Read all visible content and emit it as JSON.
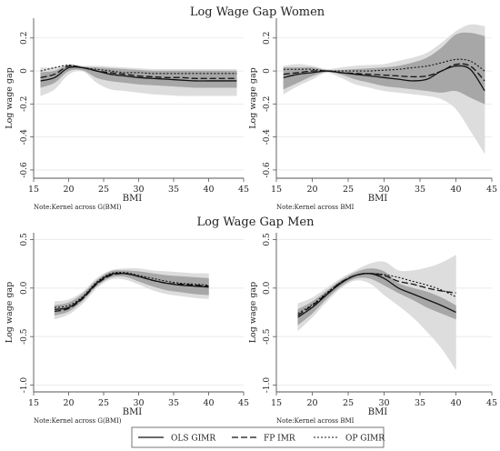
{
  "colors": {
    "band_outer": "#dddddd",
    "band_inner": "#a7a7a7",
    "grid": "#e6e6e6",
    "axis": "#555555",
    "line": "#111111",
    "background": "#ffffff"
  },
  "sections": {
    "women_title": "Log Wage Gap Women",
    "men_title": "Log Wage Gap Men"
  },
  "legend": {
    "items": [
      {
        "label": "OLS GIMR",
        "dash": "solid"
      },
      {
        "label": "FP IMR",
        "dash": "long-dash"
      },
      {
        "label": "OP GIMR",
        "dash": "short-dash"
      }
    ]
  },
  "chart_data": [
    {
      "type": "line",
      "title": "",
      "xlabel": "BMI",
      "ylabel": "Log wage gap",
      "note": "Note:Kernel across G(BMI)",
      "xlim": [
        15,
        45
      ],
      "ylim": [
        -0.65,
        0.32
      ],
      "xticks": [
        15,
        20,
        25,
        30,
        35,
        40,
        45
      ],
      "yticks": [
        -0.6,
        -0.4,
        -0.2,
        0,
        0.2
      ],
      "ytick_labels": [
        "-0.6",
        "-0.4",
        "-0.2",
        "0",
        "0.2"
      ],
      "grid": true,
      "x": [
        16,
        18,
        20,
        22,
        24,
        26,
        28,
        30,
        32,
        34,
        36,
        38,
        40,
        42,
        44
      ],
      "series": [
        {
          "name": "OLS GIMR",
          "values": [
            -0.06,
            -0.04,
            0.02,
            0.02,
            0.0,
            -0.02,
            -0.03,
            -0.04,
            -0.045,
            -0.05,
            -0.055,
            -0.06,
            -0.06,
            -0.06,
            -0.06
          ]
        },
        {
          "name": "FP IMR",
          "values": [
            -0.04,
            -0.02,
            0.03,
            0.02,
            0.0,
            -0.01,
            -0.02,
            -0.03,
            -0.035,
            -0.04,
            -0.04,
            -0.045,
            -0.045,
            -0.045,
            -0.045
          ]
        },
        {
          "name": "OP GIMR",
          "values": [
            0.0,
            0.02,
            0.035,
            0.02,
            0.01,
            0.0,
            -0.01,
            -0.01,
            -0.015,
            -0.015,
            -0.015,
            -0.015,
            -0.015,
            -0.015,
            -0.015
          ]
        }
      ],
      "bands": [
        {
          "lower": [
            -0.15,
            -0.11,
            -0.02,
            0.0,
            -0.07,
            -0.11,
            -0.12,
            -0.13,
            -0.14,
            -0.145,
            -0.15,
            -0.15,
            -0.15,
            -0.15,
            -0.15
          ],
          "upper": [
            0.02,
            0.02,
            0.04,
            0.03,
            0.03,
            0.025,
            0.02,
            0.015,
            0.01,
            0.01,
            0.01,
            0.01,
            0.01,
            0.01,
            0.01
          ],
          "level": "outer"
        },
        {
          "lower": [
            -0.1,
            -0.07,
            0.0,
            0.005,
            -0.04,
            -0.06,
            -0.07,
            -0.08,
            -0.085,
            -0.09,
            -0.095,
            -0.1,
            -0.1,
            -0.1,
            -0.1
          ],
          "upper": [
            -0.01,
            0.0,
            0.035,
            0.025,
            0.02,
            0.015,
            0.01,
            0.005,
            0.0,
            0.0,
            0.0,
            0.0,
            0.0,
            0.0,
            0.0
          ],
          "level": "inner"
        }
      ]
    },
    {
      "type": "line",
      "title": "",
      "xlabel": "BMI",
      "ylabel": "Log wage gap",
      "note": "Note:Kernel across BMI",
      "xlim": [
        15,
        45
      ],
      "ylim": [
        -0.65,
        0.32
      ],
      "xticks": [
        15,
        20,
        25,
        30,
        35,
        40,
        45
      ],
      "yticks": [
        -0.6,
        -0.4,
        -0.2,
        0,
        0.2
      ],
      "ytick_labels": [
        "-0.6",
        "-0.4",
        "-0.2",
        "0",
        "0.2"
      ],
      "grid": true,
      "x": [
        16,
        18,
        20,
        22,
        24,
        26,
        28,
        30,
        32,
        34,
        36,
        38,
        40,
        42,
        44
      ],
      "series": [
        {
          "name": "OLS GIMR",
          "values": [
            -0.04,
            -0.02,
            -0.01,
            0.0,
            -0.01,
            -0.02,
            -0.03,
            -0.04,
            -0.05,
            -0.06,
            -0.05,
            0.0,
            0.03,
            0.01,
            -0.12
          ]
        },
        {
          "name": "FP IMR",
          "values": [
            -0.02,
            -0.01,
            0.0,
            0.0,
            -0.01,
            -0.015,
            -0.02,
            -0.025,
            -0.03,
            -0.035,
            -0.03,
            0.0,
            0.04,
            0.03,
            -0.06
          ]
        },
        {
          "name": "OP GIMR",
          "values": [
            0.01,
            0.01,
            0.01,
            0.0,
            0.0,
            0.0,
            0.0,
            0.005,
            0.01,
            0.02,
            0.03,
            0.05,
            0.07,
            0.06,
            0.0
          ]
        }
      ],
      "bands": [
        {
          "lower": [
            -0.14,
            -0.09,
            -0.05,
            -0.01,
            -0.04,
            -0.08,
            -0.1,
            -0.12,
            -0.13,
            -0.14,
            -0.15,
            -0.17,
            -0.23,
            -0.36,
            -0.5
          ],
          "upper": [
            0.03,
            0.04,
            0.03,
            0.01,
            0.02,
            0.03,
            0.035,
            0.04,
            0.06,
            0.08,
            0.11,
            0.17,
            0.24,
            0.28,
            0.27
          ]
        },
        {
          "lower": [
            -0.11,
            -0.07,
            -0.03,
            -0.005,
            -0.02,
            -0.05,
            -0.07,
            -0.09,
            -0.1,
            -0.11,
            -0.12,
            -0.13,
            -0.12,
            -0.16,
            -0.2
          ],
          "upper": [
            0.02,
            0.02,
            0.02,
            0.005,
            0.005,
            0.01,
            0.015,
            0.02,
            0.03,
            0.05,
            0.08,
            0.14,
            0.22,
            0.23,
            0.21
          ]
        }
      ]
    },
    {
      "type": "line",
      "title": "",
      "xlabel": "BMI",
      "ylabel": "Log wage gap",
      "note": "Note:Kernel across G(BMI)",
      "xlim": [
        15,
        45
      ],
      "ylim": [
        -1.07,
        0.57
      ],
      "xticks": [
        15,
        20,
        25,
        30,
        35,
        40,
        45
      ],
      "yticks": [
        -1.0,
        -0.5,
        0,
        0.5
      ],
      "ytick_labels": [
        "-1.0",
        "-0.5",
        "0.0",
        "0.5"
      ],
      "grid": true,
      "x": [
        18,
        20,
        22,
        24,
        26,
        28,
        30,
        32,
        34,
        36,
        38,
        40
      ],
      "series": [
        {
          "name": "OLS GIMR",
          "values": [
            -0.22,
            -0.2,
            -0.1,
            0.05,
            0.14,
            0.15,
            0.12,
            0.08,
            0.05,
            0.03,
            0.02,
            0.01
          ]
        },
        {
          "name": "FP IMR",
          "values": [
            -0.24,
            -0.21,
            -0.11,
            0.04,
            0.13,
            0.15,
            0.12,
            0.08,
            0.05,
            0.04,
            0.03,
            0.02
          ]
        },
        {
          "name": "OP GIMR",
          "values": [
            -0.2,
            -0.18,
            -0.09,
            0.06,
            0.15,
            0.16,
            0.13,
            0.1,
            0.07,
            0.05,
            0.04,
            0.03
          ]
        }
      ],
      "bands": [
        {
          "lower": [
            -0.32,
            -0.27,
            -0.16,
            0.0,
            0.09,
            0.09,
            0.04,
            -0.02,
            -0.06,
            -0.08,
            -0.1,
            -0.11
          ],
          "upper": [
            -0.14,
            -0.12,
            -0.04,
            0.1,
            0.18,
            0.2,
            0.2,
            0.18,
            0.17,
            0.16,
            0.15,
            0.15
          ]
        },
        {
          "lower": [
            -0.28,
            -0.24,
            -0.13,
            0.02,
            0.11,
            0.12,
            0.07,
            0.02,
            -0.02,
            -0.04,
            -0.06,
            -0.07
          ],
          "upper": [
            -0.18,
            -0.15,
            -0.06,
            0.08,
            0.17,
            0.18,
            0.17,
            0.15,
            0.13,
            0.12,
            0.11,
            0.1
          ]
        }
      ]
    },
    {
      "type": "line",
      "title": "",
      "xlabel": "BMI",
      "ylabel": "Log wage gap",
      "note": "Note:Kernel across BMI",
      "xlim": [
        15,
        45
      ],
      "ylim": [
        -1.07,
        0.57
      ],
      "xticks": [
        15,
        20,
        25,
        30,
        35,
        40,
        45
      ],
      "yticks": [
        -1.0,
        -0.5,
        0,
        0.5
      ],
      "ytick_labels": [
        "-1.0",
        "-0.5",
        "0.0",
        "0.5"
      ],
      "grid": true,
      "x": [
        18,
        20,
        22,
        24,
        26,
        28,
        30,
        32,
        34,
        36,
        38,
        40
      ],
      "series": [
        {
          "name": "OLS GIMR",
          "values": [
            -0.3,
            -0.2,
            -0.07,
            0.05,
            0.13,
            0.15,
            0.1,
            0.0,
            -0.06,
            -0.12,
            -0.18,
            -0.25
          ]
        },
        {
          "name": "FP IMR",
          "values": [
            -0.28,
            -0.18,
            -0.06,
            0.06,
            0.13,
            0.15,
            0.13,
            0.07,
            0.04,
            0.0,
            -0.03,
            -0.05
          ]
        },
        {
          "name": "OP GIMR",
          "values": [
            -0.26,
            -0.17,
            -0.05,
            0.06,
            0.13,
            0.15,
            0.14,
            0.11,
            0.07,
            0.03,
            -0.02,
            -0.09
          ]
        }
      ],
      "bands": [
        {
          "lower": [
            -0.44,
            -0.3,
            -0.14,
            0.0,
            0.08,
            0.05,
            -0.07,
            -0.18,
            -0.3,
            -0.45,
            -0.62,
            -0.84
          ]
        },
        {
          "lower": [
            -0.38,
            -0.26,
            -0.11,
            0.02,
            0.1,
            0.1,
            0.03,
            -0.05,
            -0.12,
            -0.2,
            -0.26,
            -0.32
          ]
        }
      ]
    }
  ]
}
